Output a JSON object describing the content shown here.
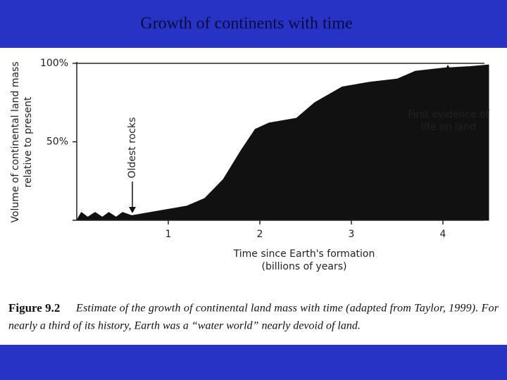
{
  "chart_data": {
    "type": "area",
    "title": "Growth of continents with time",
    "x": [
      0,
      0.05,
      0.12,
      0.2,
      0.28,
      0.35,
      0.43,
      0.5,
      0.6,
      0.8,
      1.0,
      1.2,
      1.4,
      1.6,
      1.8,
      1.95,
      2.1,
      2.4,
      2.6,
      2.9,
      3.2,
      3.5,
      3.7,
      4.0,
      4.3,
      4.5
    ],
    "series": [
      {
        "color": "#111111",
        "values": [
          0,
          5,
          2,
          5,
          2,
          5,
          2,
          5,
          3,
          5,
          7,
          9,
          14,
          26,
          45,
          58,
          62,
          65,
          75,
          85,
          88,
          90,
          95,
          97,
          98,
          99
        ]
      }
    ],
    "xlim": [
      0,
      4.5
    ],
    "ylim": [
      0,
      100
    ],
    "xticks": [
      1,
      2,
      3,
      4
    ],
    "yticks": [
      {
        "value": 50,
        "label": "50%"
      },
      {
        "value": 100,
        "label": "100%"
      }
    ],
    "ylabel": [
      "Volume of continental land mass",
      "relative to present"
    ],
    "xlabel": [
      "Time since Earth's formation",
      "(billions of years)"
    ],
    "annotations": [
      [
        "Oldest rocks"
      ],
      [
        "First evidence of",
        "life on land"
      ]
    ],
    "figure_label": "Figure 9.2",
    "caption": [
      "Estimate of the growth of continental land mass with time (adapted from Taylor, 1999). For",
      "nearly a third of its history, Earth was a “water world” nearly devoid of land."
    ]
  }
}
